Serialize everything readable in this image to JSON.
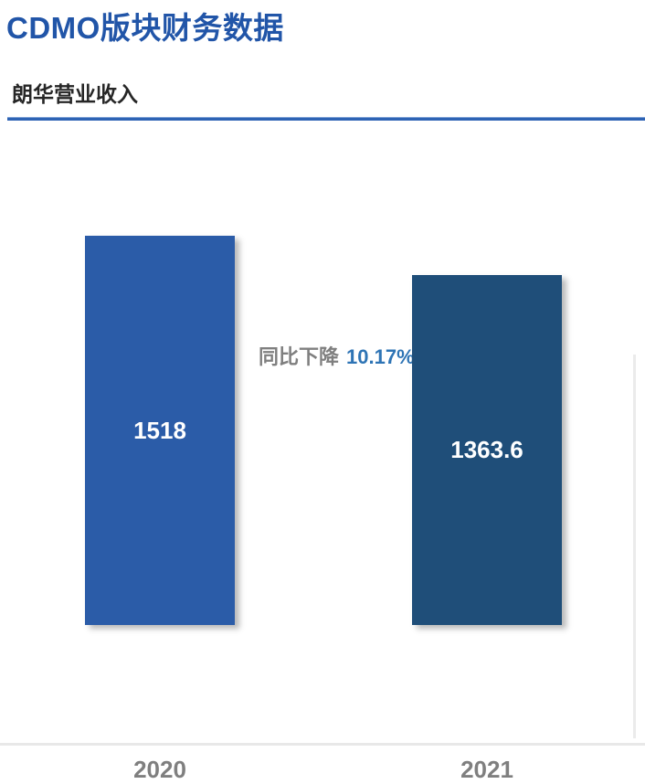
{
  "page": {
    "title": "CDMO版块财务数据",
    "section_title": "朗华营业收入"
  },
  "annotation": {
    "prefix": "同比下降",
    "value": "10.17%"
  },
  "chart_data": {
    "type": "bar",
    "title": "朗华营业收入",
    "categories": [
      "2020",
      "2021"
    ],
    "values": [
      1518,
      1363.6
    ],
    "value_labels": [
      "1518",
      "1363.6"
    ],
    "annotation": "同比下降 10.17%",
    "yoy_change_pct": -10.17,
    "xlabel": "",
    "ylabel": "",
    "ylim": [
      0,
      1600
    ],
    "grid": false,
    "legend": false,
    "bar_colors": [
      "#2B5CA8",
      "#1F4E79"
    ],
    "value_label_color": "#FFFFFF",
    "tick_label_color": "#7F7F7F"
  },
  "colors": {
    "title": "#2155A8",
    "divider": "#2E63B4",
    "annotation_text": "#7F7F7F",
    "annotation_pct": "#2E74B5",
    "axis_line": "#E8E8E8"
  }
}
